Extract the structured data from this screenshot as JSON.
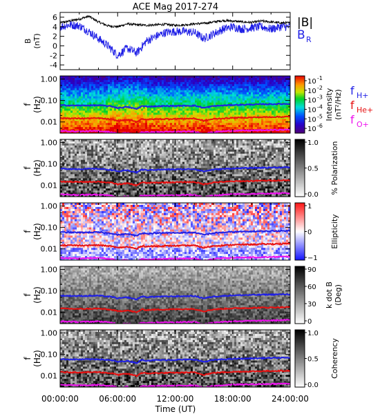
{
  "title": "ACE Mag 2017-274",
  "colors": {
    "B_total": "#000000",
    "B_R": "#1f1fe6",
    "f_H": "#1f1fe6",
    "f_He": "#e61010",
    "f_O": "#ee10ee"
  },
  "chart_data": [
    {
      "type": "line",
      "ylabel": "B\n(nT)",
      "ylim": [
        -5,
        7
      ],
      "yticks": [
        6,
        4,
        2,
        0,
        -2,
        -4
      ],
      "ytick_labels": [
        "6",
        "4",
        "2",
        "0",
        "-2",
        "-4"
      ],
      "legend": [
        "|B|",
        "B_R"
      ],
      "legend_placement": "right",
      "x_hours": [
        0,
        1,
        2,
        3,
        4,
        5,
        6,
        7,
        8,
        9,
        10,
        11,
        12,
        13,
        14,
        15,
        16,
        17,
        18,
        19,
        20,
        21,
        22,
        23,
        24
      ],
      "series": [
        {
          "name": "|B|",
          "values": [
            4.8,
            5.2,
            5.6,
            6.2,
            5.0,
            4.2,
            4.0,
            4.6,
            4.4,
            4.3,
            4.4,
            4.5,
            4.3,
            4.4,
            4.6,
            4.7,
            5.0,
            5.3,
            5.2,
            5.0,
            4.9,
            5.2,
            5.0,
            4.8,
            4.8
          ]
        },
        {
          "name": "B_R",
          "values": [
            4.0,
            4.4,
            4.2,
            3.0,
            1.5,
            0.0,
            -2.0,
            -0.5,
            -1.5,
            1.0,
            2.0,
            2.8,
            3.0,
            3.0,
            2.8,
            1.5,
            2.5,
            3.5,
            4.0,
            3.5,
            3.8,
            4.0,
            3.5,
            4.0,
            4.0
          ]
        }
      ]
    },
    {
      "type": "heatmap",
      "ylabel": "f\n(Hz)",
      "ylim": [
        0.003,
        1.4
      ],
      "yscale": "log",
      "ytick_labels": [
        "1.00",
        "0.10",
        "0.01"
      ],
      "colorbar_label": "Intensity\n(nT²/Hz)",
      "colorbar_scale": "log",
      "colorbar_ticks": [
        "10",
        "10",
        "10",
        "10",
        "10",
        "10"
      ],
      "colorbar_exponents": [
        "-1",
        "-2",
        "-3",
        "-4",
        "-5",
        "-6"
      ],
      "colorbar_range": [
        -6.5,
        -0.5
      ],
      "legend": [
        "f",
        "f",
        "f"
      ],
      "legend_subscripts": [
        "H+",
        "He+",
        "O+"
      ]
    },
    {
      "type": "heatmap",
      "ylabel": "f\n(Hz)",
      "ylim": [
        0.003,
        1.4
      ],
      "yscale": "log",
      "ytick_labels": [
        "1.00",
        "0.10",
        "0.01"
      ],
      "colorbar_label": "% Polarization",
      "colorbar_ticks": [
        "1.0",
        "0.5",
        "0.0"
      ],
      "colorbar_range": [
        0,
        1
      ]
    },
    {
      "type": "heatmap",
      "ylabel": "f\n(Hz)",
      "ylim": [
        0.003,
        1.4
      ],
      "yscale": "log",
      "ytick_labels": [
        "1.00",
        "0.10",
        "0.01"
      ],
      "colorbar_label": "Ellipticity",
      "colorbar_ticks": [
        "1",
        "0",
        "−1"
      ],
      "colorbar_range": [
        -1,
        1
      ]
    },
    {
      "type": "heatmap",
      "ylabel": "f\n(Hz)",
      "ylim": [
        0.003,
        1.4
      ],
      "yscale": "log",
      "ytick_labels": [
        "1.00",
        "0.10",
        "0.01"
      ],
      "colorbar_label": "k dot B\n(Deg)",
      "colorbar_ticks": [
        "90",
        "60",
        "30",
        "0"
      ],
      "colorbar_range": [
        0,
        90
      ]
    },
    {
      "type": "heatmap",
      "ylabel": "f\n(Hz)",
      "ylim": [
        0.003,
        1.4
      ],
      "yscale": "log",
      "ytick_labels": [
        "1.00",
        "0.10",
        "0.01"
      ],
      "colorbar_label": "Coherency",
      "colorbar_ticks": [
        "1.0",
        "0.5",
        "0.0"
      ],
      "colorbar_range": [
        0,
        1
      ]
    }
  ],
  "gyro_lines": {
    "x_hours": [
      0,
      2,
      4,
      5.5,
      6,
      7,
      8,
      8.5,
      9,
      10,
      12,
      14,
      15,
      16,
      18,
      20,
      22,
      24
    ],
    "f_H": [
      0.06,
      0.058,
      0.06,
      0.052,
      0.045,
      0.05,
      0.04,
      0.055,
      0.052,
      0.054,
      0.056,
      0.058,
      0.045,
      0.055,
      0.062,
      0.065,
      0.068,
      0.07
    ],
    "f_He": [
      0.015,
      0.0145,
      0.015,
      0.013,
      0.0112,
      0.0125,
      0.01,
      0.0138,
      0.013,
      0.0135,
      0.014,
      0.0145,
      0.0112,
      0.0138,
      0.0155,
      0.0162,
      0.017,
      0.0175
    ],
    "f_O": [
      0.0038,
      0.0036,
      0.0038,
      0.0033,
      0.0028,
      0.0031,
      0.0025,
      0.0034,
      0.0033,
      0.0034,
      0.0035,
      0.0036,
      0.0028,
      0.0034,
      0.0039,
      0.004,
      0.0042,
      0.0044
    ]
  },
  "xaxis": {
    "label": "Time (UT)",
    "range_hours": [
      0,
      24
    ],
    "ticks_hours": [
      0,
      6,
      12,
      18,
      24
    ],
    "tick_labels": [
      "00:00:00",
      "06:00:00",
      "12:00:00",
      "18:00:00",
      "24:00:00"
    ]
  }
}
